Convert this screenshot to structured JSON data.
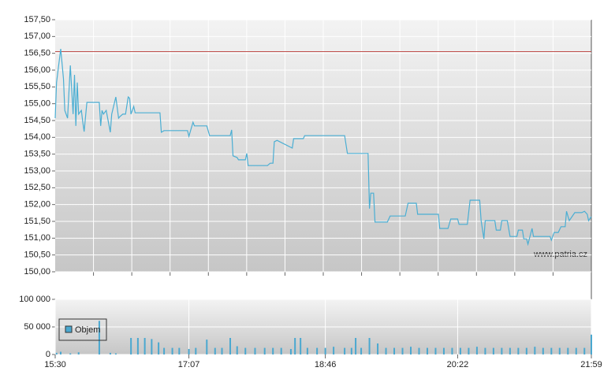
{
  "chart_data": [
    {
      "type": "line",
      "x": [
        "15:30",
        "15:31",
        "15:34",
        "15:36",
        "15:37",
        "15:39",
        "15:41",
        "15:43",
        "15:44",
        "15:45",
        "15:46",
        "15:47",
        "15:49",
        "15:50",
        "15:51",
        "15:53",
        "15:59",
        "16:02",
        "16:03",
        "16:04",
        "16:05",
        "16:07",
        "16:10",
        "16:11",
        "16:14",
        "16:16",
        "16:17",
        "16:19",
        "16:21",
        "16:23",
        "16:24",
        "16:25",
        "16:27",
        "16:28",
        "16:46",
        "16:47",
        "16:49",
        "17:06",
        "17:07",
        "17:10",
        "17:11",
        "17:20",
        "17:22",
        "17:37",
        "17:38",
        "17:39",
        "17:42",
        "17:43",
        "17:48",
        "17:49",
        "17:50",
        "18:04",
        "18:06",
        "18:08",
        "18:09",
        "18:11",
        "18:22",
        "18:23",
        "18:30",
        "18:31",
        "19:00",
        "19:02",
        "19:17",
        "19:18",
        "19:19",
        "19:21",
        "19:22",
        "19:31",
        "19:33",
        "19:44",
        "19:46",
        "19:52",
        "19:53",
        "20:08",
        "20:09",
        "20:15",
        "20:17",
        "20:22",
        "20:23",
        "20:29",
        "20:31",
        "20:38",
        "20:39",
        "20:41",
        "20:42",
        "20:49",
        "20:50",
        "20:53",
        "20:54",
        "20:58",
        "21:00",
        "21:05",
        "21:06",
        "21:09",
        "21:10",
        "21:12",
        "21:13",
        "21:16",
        "21:17",
        "21:29",
        "21:30",
        "21:32",
        "21:35",
        "21:37",
        "21:40",
        "21:41",
        "21:43",
        "21:47",
        "21:52",
        "21:54",
        "21:56",
        "21:57",
        "21:59"
      ],
      "values": [
        154.57,
        155.63,
        156.63,
        155.74,
        154.8,
        154.57,
        156.14,
        154.69,
        155.86,
        154.34,
        155.63,
        154.69,
        154.8,
        154.45,
        154.17,
        155.04,
        155.04,
        155.04,
        154.34,
        154.8,
        154.69,
        154.8,
        154.15,
        154.69,
        155.2,
        154.57,
        154.62,
        154.69,
        154.69,
        155.2,
        155.16,
        154.69,
        154.92,
        154.73,
        154.73,
        154.15,
        154.2,
        154.2,
        154.03,
        154.45,
        154.34,
        154.34,
        154.05,
        154.05,
        154.22,
        153.45,
        153.4,
        153.33,
        153.33,
        153.52,
        153.16,
        153.16,
        153.23,
        153.23,
        153.87,
        153.91,
        153.68,
        153.96,
        153.96,
        154.05,
        154.05,
        153.52,
        153.52,
        151.88,
        152.34,
        152.34,
        151.48,
        151.48,
        151.66,
        151.66,
        152.04,
        152.04,
        151.71,
        151.71,
        151.29,
        151.29,
        151.57,
        151.57,
        151.41,
        151.41,
        152.13,
        152.13,
        151.52,
        150.98,
        151.52,
        151.52,
        151.24,
        151.24,
        151.52,
        151.52,
        151.05,
        151.05,
        151.24,
        151.24,
        150.98,
        150.98,
        150.82,
        151.29,
        151.05,
        151.05,
        150.94,
        151.17,
        151.17,
        151.34,
        151.34,
        151.8,
        151.52,
        151.76,
        151.76,
        151.8,
        151.71,
        151.52,
        151.64
      ],
      "color": "#4aaed3",
      "xlim": [
        "15:30",
        "21:59"
      ],
      "ylim": [
        150,
        157.5
      ],
      "yticks": [
        {
          "value": 150,
          "label": "150,00"
        },
        {
          "value": 150.5,
          "label": "150,50"
        },
        {
          "value": 151,
          "label": "151,00"
        },
        {
          "value": 151.5,
          "label": "151,50"
        },
        {
          "value": 152,
          "label": "152,00"
        },
        {
          "value": 152.5,
          "label": "152,50"
        },
        {
          "value": 153,
          "label": "153,00"
        },
        {
          "value": 153.5,
          "label": "153,50"
        },
        {
          "value": 154,
          "label": "154,00"
        },
        {
          "value": 154.5,
          "label": "154,50"
        },
        {
          "value": 155,
          "label": "155,00"
        },
        {
          "value": 155.5,
          "label": "155,50"
        },
        {
          "value": 156,
          "label": "156,00"
        },
        {
          "value": 156.5,
          "label": "156,50"
        },
        {
          "value": 157,
          "label": "157,00"
        },
        {
          "value": 157.5,
          "label": "157,50"
        }
      ],
      "reference": {
        "value": 156.55,
        "color": "#c0504d"
      },
      "annotation": "www.patria.cz",
      "grid": true
    },
    {
      "type": "bar",
      "x": [
        "15:31",
        "15:34",
        "15:41",
        "15:47",
        "16:02",
        "16:10",
        "16:14",
        "16:25",
        "16:30",
        "16:35",
        "16:40",
        "16:45",
        "16:49",
        "16:55",
        "17:00",
        "17:07",
        "17:12",
        "17:20",
        "17:26",
        "17:31",
        "17:37",
        "17:42",
        "17:48",
        "17:55",
        "18:02",
        "18:08",
        "18:14",
        "18:21",
        "18:24",
        "18:28",
        "18:33",
        "18:40",
        "18:46",
        "18:52",
        "19:00",
        "19:05",
        "19:08",
        "19:12",
        "19:18",
        "19:24",
        "19:30",
        "19:36",
        "19:42",
        "19:48",
        "19:54",
        "20:00",
        "20:06",
        "20:12",
        "20:18",
        "20:24",
        "20:30",
        "20:36",
        "20:42",
        "20:48",
        "20:54",
        "21:00",
        "21:06",
        "21:12",
        "21:18",
        "21:24",
        "21:30",
        "21:36",
        "21:42",
        "21:48",
        "21:54",
        "21:59"
      ],
      "series": [
        {
          "name": "Objem",
          "color": "#4aa8d0",
          "values": [
            3000,
            5000,
            2000,
            4000,
            61000,
            3000,
            2000,
            30000,
            30000,
            30000,
            28000,
            22000,
            12000,
            12000,
            12000,
            10000,
            12000,
            27000,
            12000,
            12000,
            30000,
            15000,
            12000,
            12000,
            12000,
            12000,
            12000,
            10000,
            30000,
            30000,
            12000,
            12000,
            12000,
            14000,
            12000,
            12000,
            30000,
            12000,
            30000,
            20000,
            12000,
            12000,
            12000,
            14000,
            12000,
            12000,
            12000,
            12000,
            12000,
            12000,
            12000,
            14000,
            12000,
            12000,
            12000,
            12000,
            12000,
            12000,
            14000,
            12000,
            12000,
            12000,
            12000,
            12000,
            12000,
            36000
          ]
        }
      ],
      "xlim": [
        "15:30",
        "21:59"
      ],
      "xticks": [
        "15:30",
        "17:07",
        "18:46",
        "20:22",
        "21:59"
      ],
      "ylim": [
        0,
        100000
      ],
      "yticks": [
        0,
        {
          "value": 50000,
          "label": "50 000"
        },
        {
          "value": 100000,
          "label": "100 000"
        }
      ],
      "legend": "top-left",
      "grid": true
    }
  ]
}
